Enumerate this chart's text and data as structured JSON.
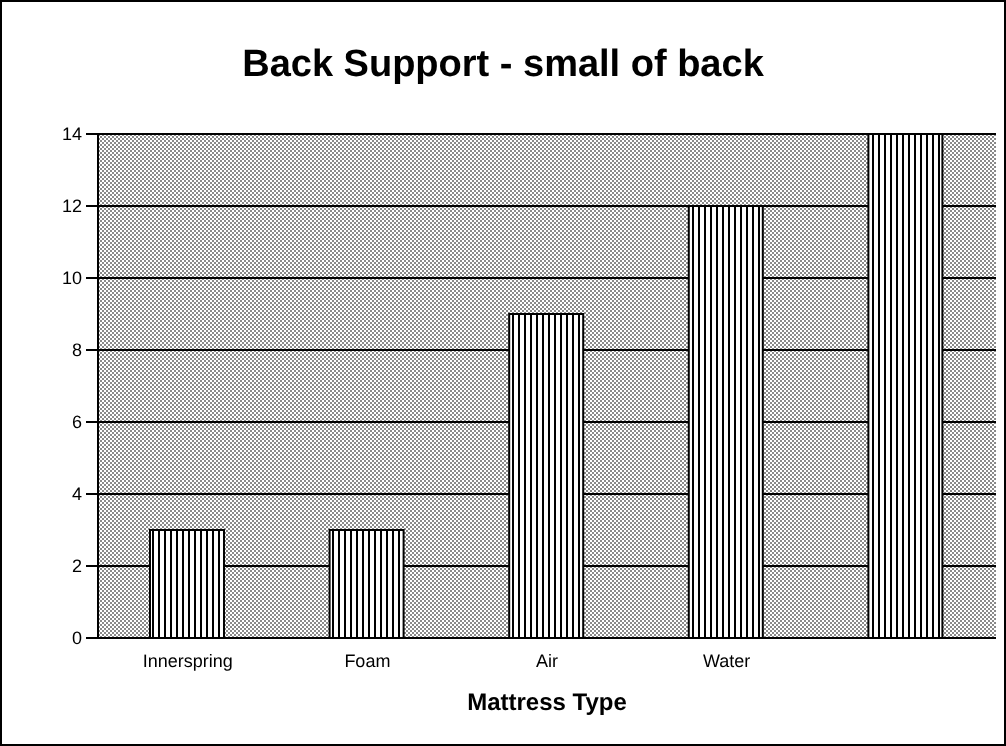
{
  "chart_data": {
    "type": "bar",
    "title": "Back Support - small of back",
    "xlabel": "Mattress Type",
    "categories": [
      "Innerspring",
      "Foam",
      "Air",
      "Water",
      null
    ],
    "values": [
      3,
      3,
      9,
      12,
      14
    ],
    "color": "#000000",
    "ylim": [
      0,
      14
    ],
    "yticks": [
      0,
      2,
      4,
      6,
      8,
      10,
      12,
      14
    ],
    "grid": "y"
  }
}
